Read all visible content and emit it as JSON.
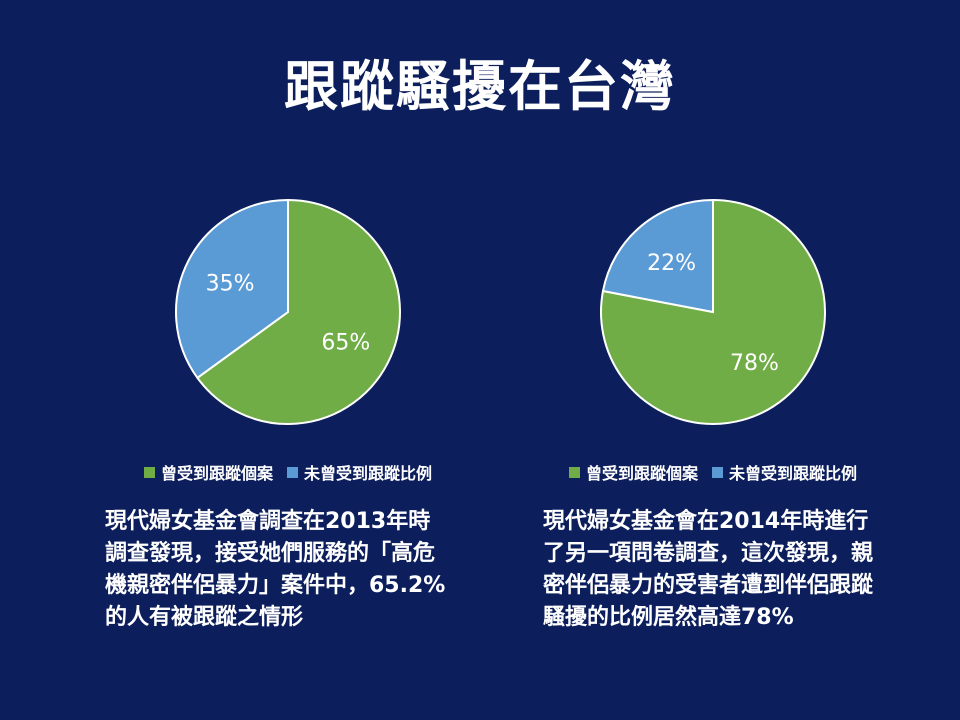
{
  "title": "跟蹤騷擾在台灣",
  "colors": {
    "background": "#0c1f5c",
    "green": "#70ad47",
    "blue": "#5b9bd5"
  },
  "chart_data": [
    {
      "type": "pie",
      "categories": [
        "曾受到跟蹤個案",
        "未曾受到跟蹤比例"
      ],
      "values": [
        65,
        35
      ],
      "labels": [
        "65%",
        "35%"
      ],
      "colors": [
        "#70ad47",
        "#5b9bd5"
      ],
      "legend_position": "bottom"
    },
    {
      "type": "pie",
      "categories": [
        "曾受到跟蹤個案",
        "未曾受到跟蹤比例"
      ],
      "values": [
        78,
        22
      ],
      "labels": [
        "78%",
        "22%"
      ],
      "colors": [
        "#70ad47",
        "#5b9bd5"
      ],
      "legend_position": "bottom"
    }
  ],
  "captions": [
    "現代婦女基金會調查在2013年時調查發現，接受她們服務的「高危機親密伴侶暴力」案件中，65.2%的人有被跟蹤之情形",
    "現代婦女基金會在2014年時進行了另一項問卷調查，這次發現，親密伴侶暴力的受害者遭到伴侶跟蹤騷擾的比例居然高達78%"
  ]
}
